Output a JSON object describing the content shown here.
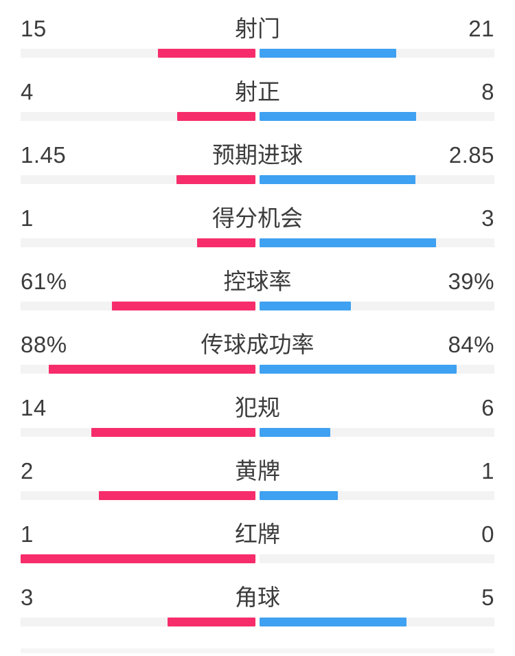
{
  "panel": {
    "background": "#ffffff"
  },
  "colors": {
    "left_bar": "#f62d6a",
    "right_bar": "#3fa1f1",
    "track": "#f3f3f3",
    "text": "#3c3c3c",
    "partial_track": "#f5f5f5"
  },
  "chart_data": {
    "type": "bar",
    "orientation": "horizontal-paired",
    "title": "",
    "categories": [
      "射门",
      "射正",
      "预期进球",
      "得分机会",
      "控球率",
      "传球成功率",
      "犯规",
      "黄牌",
      "红牌",
      "角球"
    ],
    "series": [
      {
        "name": "left-team",
        "color": "#f62d6a",
        "values": [
          15,
          4,
          1.45,
          1,
          61,
          88,
          14,
          2,
          1,
          3
        ]
      },
      {
        "name": "right-team",
        "color": "#3fa1f1",
        "values": [
          21,
          8,
          2.85,
          3,
          39,
          84,
          6,
          1,
          0,
          5
        ]
      }
    ],
    "value_display": {
      "left": [
        "15",
        "4",
        "1.45",
        "1",
        "61%",
        "88%",
        "14",
        "2",
        "1",
        "3"
      ],
      "right": [
        "21",
        "8",
        "2.85",
        "3",
        "39%",
        "84%",
        "6",
        "1",
        "0",
        "5"
      ]
    },
    "bar_scaling": "percent stats use raw percent of half-width; count stats use value/(left+right) share of half-width",
    "legend_position": "none",
    "grid": false
  },
  "rows": [
    {
      "label": "射门",
      "left": "15",
      "right": "21",
      "left_num": 15,
      "right_num": 21,
      "is_percent": false
    },
    {
      "label": "射正",
      "left": "4",
      "right": "8",
      "left_num": 4,
      "right_num": 8,
      "is_percent": false
    },
    {
      "label": "预期进球",
      "left": "1.45",
      "right": "2.85",
      "left_num": 1.45,
      "right_num": 2.85,
      "is_percent": false
    },
    {
      "label": "得分机会",
      "left": "1",
      "right": "3",
      "left_num": 1,
      "right_num": 3,
      "is_percent": false
    },
    {
      "label": "控球率",
      "left": "61%",
      "right": "39%",
      "left_num": 61,
      "right_num": 39,
      "is_percent": true
    },
    {
      "label": "传球成功率",
      "left": "88%",
      "right": "84%",
      "left_num": 88,
      "right_num": 84,
      "is_percent": true
    },
    {
      "label": "犯规",
      "left": "14",
      "right": "6",
      "left_num": 14,
      "right_num": 6,
      "is_percent": false
    },
    {
      "label": "黄牌",
      "left": "2",
      "right": "1",
      "left_num": 2,
      "right_num": 1,
      "is_percent": false
    },
    {
      "label": "红牌",
      "left": "1",
      "right": "0",
      "left_num": 1,
      "right_num": 0,
      "is_percent": false
    },
    {
      "label": "角球",
      "left": "3",
      "right": "5",
      "left_num": 3,
      "right_num": 5,
      "is_percent": false
    }
  ]
}
